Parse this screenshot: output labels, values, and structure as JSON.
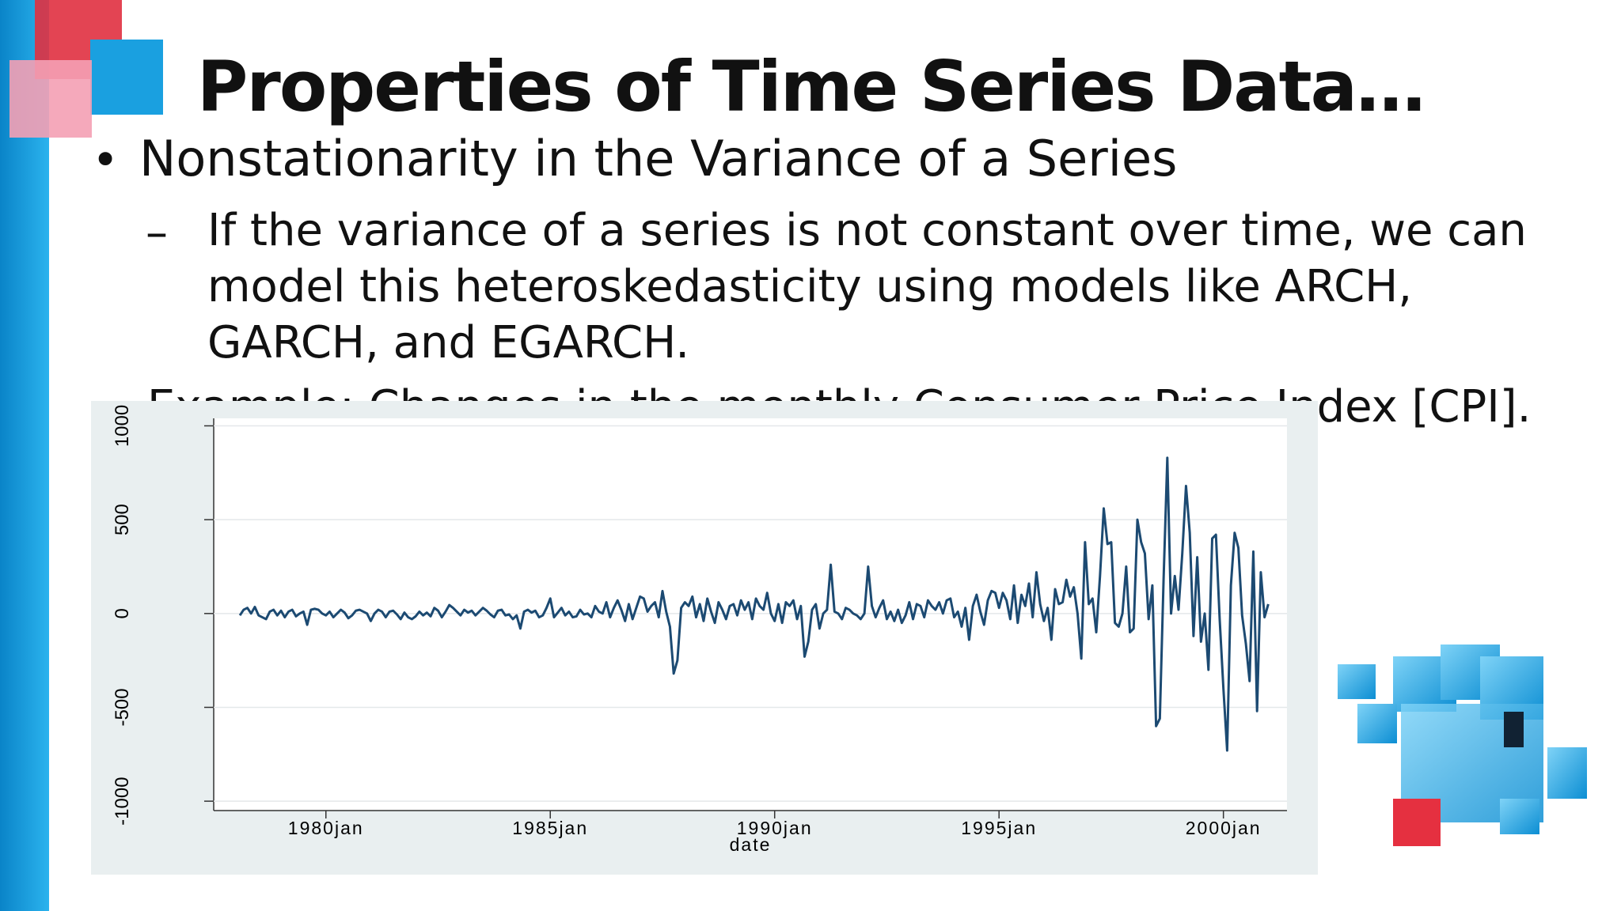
{
  "slide": {
    "title": "Properties of Time Series Data…",
    "bullet": "Nonstationarity in the Variance of a Series",
    "sub_bullet": "If the variance of a series is not constant over time, we can model this heteroskedasticity using models like ARCH, GARCH, and EGARCH.",
    "example": "Example: Changes in the monthly Consumer Price Index [CPI]."
  },
  "chart_data": {
    "type": "line",
    "x_label": "date",
    "color": "#1c4a72",
    "grid": true,
    "xlim": [
      "1977jul",
      "2001jun"
    ],
    "xticks": [
      "1980jan",
      "1985jan",
      "1990jan",
      "1995jan",
      "2000jan"
    ],
    "ylim": [
      -1050,
      1040
    ],
    "yticks": [
      -1000,
      -500,
      0,
      500,
      1000
    ],
    "x": [
      "1978feb",
      "1978mar",
      "1978apr",
      "1978may",
      "1978jun",
      "1978jul",
      "1978aug",
      "1978sep",
      "1978oct",
      "1978nov",
      "1978dec",
      "1979jan",
      "1979feb",
      "1979mar",
      "1979apr",
      "1979may",
      "1979jun",
      "1979jul",
      "1979aug",
      "1979sep",
      "1979oct",
      "1979nov",
      "1979dec",
      "1980jan",
      "1980feb",
      "1980mar",
      "1980apr",
      "1980may",
      "1980jun",
      "1980jul",
      "1980aug",
      "1980sep",
      "1980oct",
      "1980nov",
      "1980dec",
      "1981jan",
      "1981feb",
      "1981mar",
      "1981apr",
      "1981may",
      "1981jun",
      "1981jul",
      "1981aug",
      "1981sep",
      "1981oct",
      "1981nov",
      "1981dec",
      "1982jan",
      "1982feb",
      "1982mar",
      "1982apr",
      "1982may",
      "1982jun",
      "1982jul",
      "1982aug",
      "1982sep",
      "1982oct",
      "1982nov",
      "1982dec",
      "1983jan",
      "1983feb",
      "1983mar",
      "1983apr",
      "1983may",
      "1983jun",
      "1983jul",
      "1983aug",
      "1983sep",
      "1983oct",
      "1983nov",
      "1983dec",
      "1984jan",
      "1984feb",
      "1984mar",
      "1984apr",
      "1984may",
      "1984jun",
      "1984jul",
      "1984aug",
      "1984sep",
      "1984oct",
      "1984nov",
      "1984dec",
      "1985jan",
      "1985feb",
      "1985mar",
      "1985apr",
      "1985may",
      "1985jun",
      "1985jul",
      "1985aug",
      "1985sep",
      "1985oct",
      "1985nov",
      "1985dec",
      "1986jan",
      "1986feb",
      "1986mar",
      "1986apr",
      "1986may",
      "1986jun",
      "1986jul",
      "1986aug",
      "1986sep",
      "1986oct",
      "1986nov",
      "1986dec",
      "1987jan",
      "1987feb",
      "1987mar",
      "1987apr",
      "1987may",
      "1987jun",
      "1987jul",
      "1987aug",
      "1987sep",
      "1987oct",
      "1987nov",
      "1987dec",
      "1988jan",
      "1988feb",
      "1988mar",
      "1988apr",
      "1988may",
      "1988jun",
      "1988jul",
      "1988aug",
      "1988sep",
      "1988oct",
      "1988nov",
      "1988dec",
      "1989jan",
      "1989feb",
      "1989mar",
      "1989apr",
      "1989may",
      "1989jun",
      "1989jul",
      "1989aug",
      "1989sep",
      "1989oct",
      "1989nov",
      "1989dec",
      "1990jan",
      "1990feb",
      "1990mar",
      "1990apr",
      "1990may",
      "1990jun",
      "1990jul",
      "1990aug",
      "1990sep",
      "1990oct",
      "1990nov",
      "1990dec",
      "1991jan",
      "1991feb",
      "1991mar",
      "1991apr",
      "1991may",
      "1991jun",
      "1991jul",
      "1991aug",
      "1991sep",
      "1991oct",
      "1991nov",
      "1991dec",
      "1992jan",
      "1992feb",
      "1992mar",
      "1992apr",
      "1992may",
      "1992jun",
      "1992jul",
      "1992aug",
      "1992sep",
      "1992oct",
      "1992nov",
      "1992dec",
      "1993jan",
      "1993feb",
      "1993mar",
      "1993apr",
      "1993may",
      "1993jun",
      "1993jul",
      "1993aug",
      "1993sep",
      "1993oct",
      "1993nov",
      "1993dec",
      "1994jan",
      "1994feb",
      "1994mar",
      "1994apr",
      "1994may",
      "1994jun",
      "1994jul",
      "1994aug",
      "1994sep",
      "1994oct",
      "1994nov",
      "1994dec",
      "1995jan",
      "1995feb",
      "1995mar",
      "1995apr",
      "1995may",
      "1995jun",
      "1995jul",
      "1995aug",
      "1995sep",
      "1995oct",
      "1995nov",
      "1995dec",
      "1996jan",
      "1996feb",
      "1996mar",
      "1996apr",
      "1996may",
      "1996jun",
      "1996jul",
      "1996aug",
      "1996sep",
      "1996oct",
      "1996nov",
      "1996dec",
      "1997jan",
      "1997feb",
      "1997mar",
      "1997apr",
      "1997may",
      "1997jun",
      "1997jul",
      "1997aug",
      "1997sep",
      "1997oct",
      "1997nov",
      "1997dec",
      "1998jan",
      "1998feb",
      "1998mar",
      "1998apr",
      "1998may",
      "1998jun",
      "1998jul",
      "1998aug",
      "1998sep",
      "1998oct",
      "1998nov",
      "1998dec",
      "1999jan",
      "1999feb",
      "1999mar",
      "1999apr",
      "1999may",
      "1999jun",
      "1999jul",
      "1999aug",
      "1999sep",
      "1999oct",
      "1999nov",
      "1999dec",
      "2000jan",
      "2000feb",
      "2000mar",
      "2000apr",
      "2000may",
      "2000jun",
      "2000jul",
      "2000aug",
      "2000sep",
      "2000oct",
      "2000nov",
      "2000dec",
      "2001jan"
    ],
    "values": [
      -10,
      20,
      30,
      0,
      35,
      -10,
      -20,
      -30,
      10,
      20,
      -10,
      15,
      -20,
      10,
      20,
      -15,
      0,
      10,
      -60,
      20,
      25,
      20,
      0,
      -10,
      10,
      -20,
      0,
      20,
      5,
      -25,
      -10,
      15,
      20,
      10,
      0,
      -40,
      0,
      20,
      10,
      -20,
      10,
      15,
      -5,
      -30,
      5,
      -20,
      -30,
      -15,
      10,
      -10,
      5,
      -15,
      30,
      15,
      -20,
      10,
      45,
      30,
      10,
      -10,
      20,
      5,
      15,
      -10,
      10,
      30,
      15,
      -5,
      -20,
      15,
      20,
      -10,
      -5,
      -30,
      -10,
      -80,
      10,
      20,
      5,
      15,
      -20,
      -10,
      30,
      80,
      -20,
      5,
      30,
      -10,
      10,
      -20,
      -15,
      20,
      -5,
      0,
      -20,
      40,
      10,
      0,
      60,
      -20,
      30,
      70,
      20,
      -40,
      50,
      -30,
      30,
      90,
      80,
      10,
      40,
      60,
      -20,
      120,
      10,
      -70,
      -320,
      -250,
      30,
      60,
      40,
      90,
      -20,
      50,
      -40,
      80,
      10,
      -50,
      60,
      20,
      -30,
      40,
      50,
      -10,
      70,
      20,
      60,
      -30,
      80,
      40,
      20,
      110,
      0,
      -40,
      50,
      -50,
      60,
      40,
      70,
      -30,
      40,
      -230,
      -150,
      20,
      50,
      -80,
      0,
      20,
      260,
      10,
      0,
      -30,
      30,
      20,
      0,
      -10,
      -30,
      0,
      250,
      40,
      -20,
      30,
      70,
      -30,
      10,
      -40,
      20,
      -50,
      -10,
      60,
      -30,
      50,
      40,
      -20,
      70,
      40,
      20,
      60,
      0,
      70,
      80,
      -20,
      10,
      -70,
      30,
      -140,
      40,
      100,
      10,
      -60,
      70,
      120,
      110,
      30,
      110,
      70,
      -30,
      150,
      -50,
      100,
      40,
      160,
      -20,
      220,
      50,
      -40,
      30,
      -140,
      130,
      50,
      60,
      180,
      90,
      140,
      0,
      -240,
      380,
      50,
      80,
      -100,
      200,
      560,
      370,
      380,
      -50,
      -70,
      0,
      250,
      -100,
      -80,
      500,
      380,
      320,
      -30,
      150,
      -600,
      -560,
      180,
      830,
      0,
      200,
      20,
      320,
      680,
      430,
      -120,
      300,
      -150,
      0,
      -300,
      400,
      420,
      -30,
      -400,
      -730,
      150,
      430,
      350,
      -10,
      -160,
      -360,
      330,
      -520,
      220,
      -20,
      50
    ]
  }
}
